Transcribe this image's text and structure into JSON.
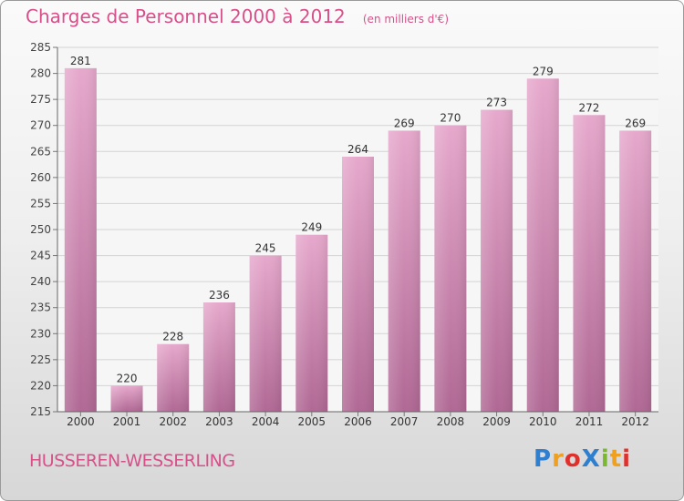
{
  "header": {
    "title": "Charges de Personnel 2000 à 2012",
    "unit_note": "(en milliers d'€)"
  },
  "footer": {
    "place": "HUSSEREN-WESSERLING"
  },
  "logo": {
    "text": "Proxiti",
    "letters": [
      {
        "ch": "P",
        "color": "#2f7fd0"
      },
      {
        "ch": "r",
        "color": "#f0a020"
      },
      {
        "ch": "o",
        "color": "#e0302c"
      },
      {
        "ch": "X",
        "color": "#2f7fd0"
      },
      {
        "ch": "i",
        "color": "#7ab830"
      },
      {
        "ch": "t",
        "color": "#f0a020"
      },
      {
        "ch": "i",
        "color": "#e0302c"
      }
    ]
  },
  "chart_data": {
    "type": "bar",
    "title": "Charges de Personnel 2000 à 2012",
    "ylabel": "",
    "xlabel": "",
    "categories": [
      "2000",
      "2001",
      "2002",
      "2003",
      "2004",
      "2005",
      "2006",
      "2007",
      "2008",
      "2009",
      "2010",
      "2011",
      "2012"
    ],
    "values": [
      281,
      220,
      228,
      236,
      245,
      249,
      264,
      269,
      270,
      273,
      279,
      272,
      269
    ],
    "ylim": [
      215,
      285
    ],
    "yticks": [
      215,
      220,
      225,
      230,
      235,
      240,
      245,
      250,
      255,
      260,
      265,
      270,
      275,
      280,
      285
    ],
    "grid": true,
    "bar_color_top": "#e6a8cc",
    "bar_color_bottom": "#b06894",
    "grid_color": "#d4d4d4"
  }
}
